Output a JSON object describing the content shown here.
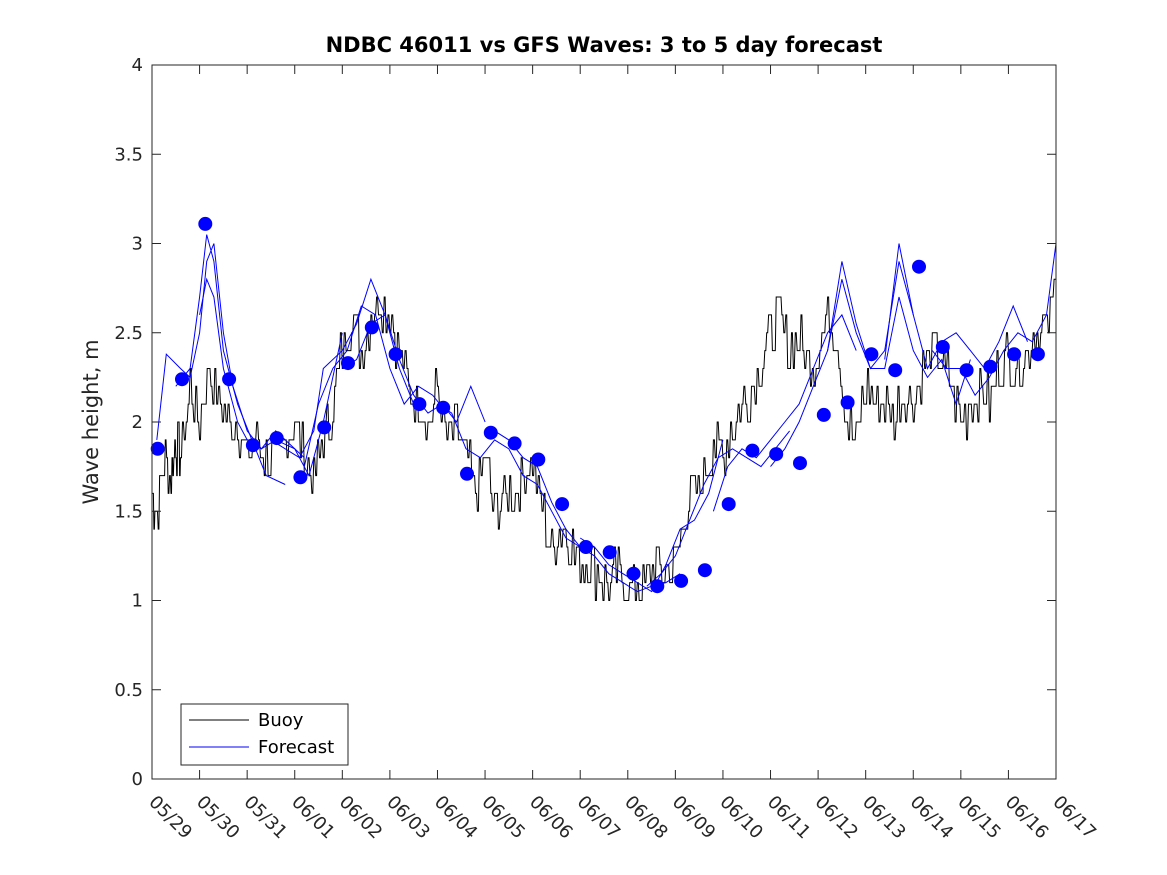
{
  "chart_data": {
    "type": "line",
    "title": "NDBC 46011 vs GFS Waves: 3 to 5 day forecast",
    "xlabel": "",
    "ylabel": "Wave height, m",
    "ylim": [
      0,
      4
    ],
    "yticks": [
      "0",
      "0.5",
      "1",
      "1.5",
      "2",
      "2.5",
      "3",
      "3.5",
      "4"
    ],
    "xlim_days": [
      0,
      19
    ],
    "xticks": [
      "05/29",
      "05/30",
      "05/31",
      "06/01",
      "06/02",
      "06/03",
      "06/04",
      "06/05",
      "06/06",
      "06/07",
      "06/08",
      "06/09",
      "06/10",
      "06/11",
      "06/12",
      "06/13",
      "06/14",
      "06/15",
      "06/16",
      "06/17"
    ],
    "grid": false,
    "legend_position": "bottom-left",
    "colors": {
      "buoy": "#000000",
      "forecast": "#0000ff",
      "markers": "#0000ff"
    },
    "series": [
      {
        "name": "Buoy",
        "x": [
          0,
          0.1,
          0.25,
          0.4,
          0.5,
          0.6,
          0.8,
          1.0,
          1.2,
          1.4,
          1.6,
          1.8,
          2.0,
          2.2,
          2.4,
          2.6,
          2.8,
          3.0,
          3.2,
          3.4,
          3.6,
          3.8,
          4.0,
          4.2,
          4.4,
          4.6,
          4.8,
          5.0,
          5.2,
          5.4,
          5.6,
          5.8,
          6.0,
          6.2,
          6.4,
          6.6,
          6.8,
          7.0,
          7.2,
          7.4,
          7.6,
          7.8,
          8.0,
          8.2,
          8.4,
          8.6,
          8.8,
          9.0,
          9.2,
          9.4,
          9.6,
          9.8,
          10.0,
          10.2,
          10.4,
          10.6,
          10.8,
          11.0,
          11.2,
          11.4,
          11.6,
          11.8,
          12.0,
          12.2,
          12.4,
          12.6,
          12.8,
          13.0,
          13.2,
          13.4,
          13.6,
          13.8,
          14.0,
          14.2,
          14.4,
          14.6,
          14.8,
          15.0,
          15.2,
          15.4,
          15.6,
          15.8,
          16.0,
          16.2,
          16.4,
          16.6,
          16.8,
          17.0,
          17.2,
          17.4,
          17.6,
          17.8,
          18.0,
          18.2,
          18.4,
          18.6,
          18.8,
          19.0
        ],
        "values": [
          1.6,
          1.5,
          1.8,
          1.7,
          1.9,
          1.8,
          2.2,
          2.0,
          2.3,
          2.1,
          2.0,
          2.0,
          1.8,
          1.9,
          1.8,
          1.8,
          1.9,
          2.0,
          1.8,
          1.7,
          1.9,
          2.1,
          2.4,
          2.6,
          2.4,
          2.6,
          2.7,
          2.6,
          2.4,
          2.2,
          2.1,
          2.0,
          2.2,
          1.9,
          2.0,
          1.8,
          1.6,
          1.8,
          1.5,
          1.6,
          1.6,
          1.7,
          1.8,
          1.5,
          1.3,
          1.4,
          1.3,
          1.2,
          1.2,
          1.15,
          1.1,
          1.15,
          1.05,
          1.1,
          1.1,
          1.2,
          1.15,
          1.2,
          1.5,
          1.6,
          1.7,
          1.9,
          1.8,
          2.0,
          2.1,
          2.2,
          2.3,
          2.5,
          2.6,
          2.4,
          2.5,
          2.3,
          2.4,
          2.6,
          2.5,
          2.0,
          1.9,
          2.2,
          2.1,
          2.1,
          2.0,
          2.2,
          2.1,
          2.3,
          2.4,
          2.3,
          2.2,
          2.0,
          2.1,
          2.2,
          2.1,
          2.3,
          2.4,
          2.3,
          2.4,
          2.5,
          2.5,
          2.8
        ]
      },
      {
        "name": "Forecast",
        "segments": [
          {
            "x": [
              0.1,
              0.3,
              0.6,
              0.8,
              1.0,
              1.15,
              1.3,
              1.5,
              1.7,
              2.0,
              2.3,
              2.6,
              3.0,
              3.3,
              3.6,
              4.0
            ],
            "values": [
              1.9,
              2.38,
              2.3,
              2.25,
              2.5,
              2.9,
              3.0,
              2.5,
              2.2,
              1.95,
              1.85,
              1.9,
              1.85,
              1.7,
              2.0,
              2.5
            ]
          },
          {
            "x": [
              0.5,
              0.8,
              1.0,
              1.15,
              1.3,
              1.5,
              1.8,
              2.1,
              2.4,
              2.8
            ],
            "values": [
              2.2,
              2.3,
              2.7,
              3.05,
              2.9,
              2.4,
              2.1,
              1.9,
              1.7,
              1.65
            ]
          },
          {
            "x": [
              1.0,
              1.15,
              1.3,
              1.5,
              1.8,
              2.0,
              2.3,
              2.6,
              2.8,
              3.2
            ],
            "values": [
              2.6,
              2.8,
              2.7,
              2.3,
              2.0,
              1.9,
              1.85,
              1.95,
              1.9,
              1.8
            ]
          },
          {
            "x": [
              2.5,
              2.8,
              3.1,
              3.4,
              3.6,
              4.0,
              4.3,
              4.6,
              4.9,
              5.2,
              5.5
            ],
            "values": [
              1.9,
              1.85,
              1.8,
              1.95,
              2.3,
              2.4,
              2.55,
              2.8,
              2.6,
              2.3,
              2.1
            ]
          },
          {
            "x": [
              3.2,
              3.5,
              3.8,
              4.1,
              4.4,
              4.7,
              5.0,
              5.3,
              5.6,
              5.9,
              6.2
            ],
            "values": [
              1.75,
              2.1,
              2.3,
              2.4,
              2.65,
              2.6,
              2.3,
              2.1,
              2.2,
              2.15,
              2.05
            ]
          },
          {
            "x": [
              4.0,
              4.3,
              4.6,
              4.9,
              5.2,
              5.5,
              5.8,
              6.1,
              6.4,
              6.7,
              7.0
            ],
            "values": [
              2.3,
              2.35,
              2.55,
              2.6,
              2.35,
              2.15,
              2.05,
              2.1,
              2.0,
              2.2,
              2.0
            ]
          },
          {
            "x": [
              6.0,
              6.3,
              6.6,
              6.9,
              7.2,
              7.5,
              7.8,
              8.1,
              8.4,
              8.7,
              9.0
            ],
            "values": [
              2.1,
              2.05,
              1.85,
              1.8,
              1.9,
              1.85,
              1.7,
              1.65,
              1.5,
              1.35,
              1.3
            ]
          },
          {
            "x": [
              7.2,
              7.5,
              7.8,
              8.1,
              8.4,
              8.7,
              9.0,
              9.3,
              9.6,
              9.9,
              10.2,
              10.5,
              10.8,
              11.1
            ],
            "values": [
              1.95,
              1.9,
              1.8,
              1.75,
              1.55,
              1.4,
              1.3,
              1.25,
              1.15,
              1.1,
              1.05,
              1.08,
              1.1,
              1.15
            ]
          },
          {
            "x": [
              9.0,
              9.3,
              9.6,
              9.9,
              10.2,
              10.5,
              10.8,
              11.1,
              11.4,
              11.7,
              12.0
            ],
            "values": [
              1.35,
              1.3,
              1.2,
              1.15,
              1.1,
              1.05,
              1.2,
              1.4,
              1.45,
              1.6,
              1.9
            ]
          },
          {
            "x": [
              10.4,
              10.7,
              11.0,
              11.3,
              11.6,
              11.9,
              12.2,
              12.5,
              12.8,
              13.1,
              13.4
            ],
            "values": [
              1.08,
              1.15,
              1.25,
              1.45,
              1.65,
              1.8,
              1.85,
              1.8,
              1.75,
              1.85,
              1.95
            ]
          },
          {
            "x": [
              11.8,
              12.1,
              12.4,
              12.7,
              13.0,
              13.3,
              13.6,
              13.9,
              14.2,
              14.5,
              14.8
            ],
            "values": [
              1.5,
              1.75,
              1.85,
              1.8,
              1.9,
              2.0,
              2.1,
              2.3,
              2.5,
              2.6,
              2.4
            ]
          },
          {
            "x": [
              13.0,
              13.3,
              13.6,
              13.9,
              14.2,
              14.5,
              14.8,
              15.1,
              15.4,
              15.7,
              16.0
            ],
            "values": [
              1.75,
              1.85,
              2.0,
              2.2,
              2.4,
              2.8,
              2.5,
              2.3,
              2.4,
              2.9,
              2.6
            ]
          },
          {
            "x": [
              14.2,
              14.5,
              14.8,
              15.1,
              15.4,
              15.7,
              16.0,
              16.3,
              16.6,
              16.9,
              17.2
            ],
            "values": [
              2.4,
              2.9,
              2.55,
              2.3,
              2.3,
              2.7,
              2.4,
              2.25,
              2.35,
              2.1,
              2.35
            ]
          },
          {
            "x": [
              15.4,
              15.7,
              16.0,
              16.3,
              16.6,
              16.9,
              17.2,
              17.5,
              17.8,
              18.1,
              18.4
            ],
            "values": [
              2.35,
              3.0,
              2.6,
              2.3,
              2.45,
              2.5,
              2.4,
              2.3,
              2.45,
              2.65,
              2.45
            ]
          },
          {
            "x": [
              16.4,
              16.7,
              17.0,
              17.3,
              17.6,
              17.9,
              18.2,
              18.5,
              18.8,
              19.0
            ],
            "values": [
              2.4,
              2.3,
              2.3,
              2.15,
              2.25,
              2.4,
              2.5,
              2.45,
              2.6,
              3.0
            ]
          }
        ],
        "markers": {
          "x": [
            0.12,
            0.63,
            1.12,
            1.62,
            2.12,
            2.62,
            3.12,
            3.62,
            4.12,
            4.62,
            5.12,
            5.62,
            6.12,
            6.62,
            7.12,
            7.62,
            8.12,
            8.62,
            9.12,
            9.62,
            10.12,
            10.62,
            11.12,
            11.62,
            12.12,
            12.62,
            13.12,
            13.62,
            14.12,
            14.62,
            15.12,
            15.62,
            16.12,
            16.62,
            17.12,
            17.62,
            18.12,
            18.62
          ],
          "values": [
            1.85,
            2.24,
            3.11,
            2.24,
            1.87,
            1.91,
            1.69,
            1.97,
            2.33,
            2.53,
            2.38,
            2.1,
            2.08,
            1.71,
            1.94,
            1.88,
            1.79,
            1.54,
            1.3,
            1.27,
            1.15,
            1.08,
            1.11,
            1.17,
            1.54,
            1.84,
            1.82,
            1.77,
            2.04,
            2.11,
            2.38,
            2.29,
            2.87,
            2.42,
            2.29,
            2.31,
            2.38,
            2.38
          ]
        }
      }
    ]
  }
}
